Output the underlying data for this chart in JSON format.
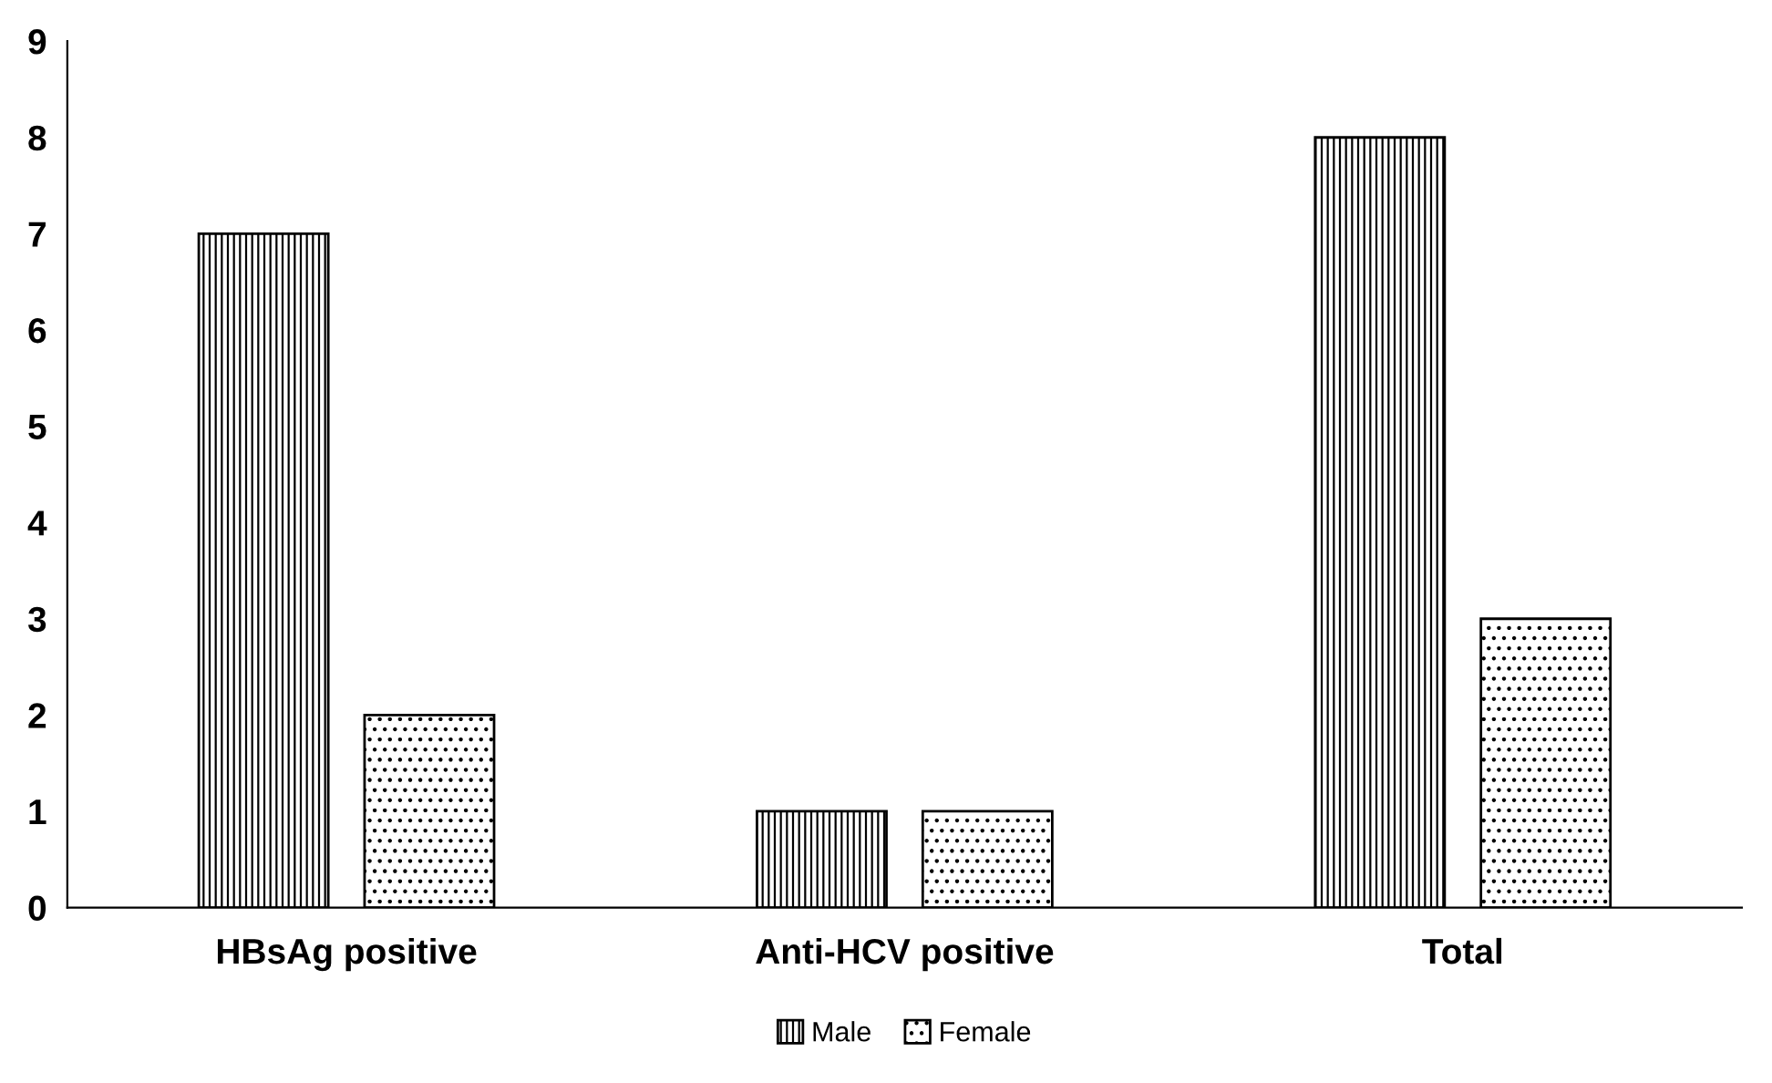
{
  "chart_data": {
    "type": "bar",
    "categories": [
      "HBsAg positive",
      "Anti-HCV positive",
      "Total"
    ],
    "series": [
      {
        "name": "Male",
        "color": "#000000",
        "values": [
          7,
          1,
          8
        ]
      },
      {
        "name": "Female",
        "color": "#000000",
        "values": [
          2,
          1,
          3
        ]
      }
    ],
    "ylim": [
      0,
      9
    ],
    "yticks": [
      0,
      1,
      2,
      3,
      4,
      5,
      6,
      7,
      8,
      9
    ],
    "grid": false,
    "legend": "bottom"
  }
}
